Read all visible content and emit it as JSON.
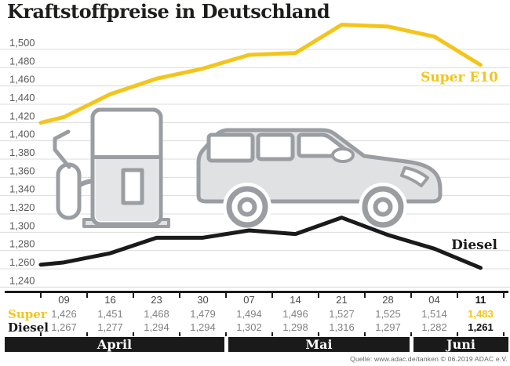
{
  "title": "Kraftstoffpreise in Deutschland",
  "source": "Quelle: www.adac.de/tanken   © 06.2019   ADAC e.V.",
  "colors": {
    "super_yellow": "#F3C51C",
    "diesel_black": "#1A1A1A",
    "grid_gray": "#DCDCDC",
    "icon_stroke": "#9A9EA2",
    "icon_fill": "#DFE1E3"
  },
  "icons": [
    "fuel-pump-icon",
    "car-icon"
  ],
  "chart_data": {
    "type": "line",
    "title": "Kraftstoffpreise in Deutschland",
    "categories": [
      "09",
      "16",
      "23",
      "30",
      "07",
      "14",
      "21",
      "28",
      "04",
      "11"
    ],
    "months": [
      {
        "label": "April",
        "columns": 4
      },
      {
        "label": "Mai",
        "columns": 4
      },
      {
        "label": "Juni",
        "columns": 2
      }
    ],
    "series": [
      {
        "name": "Super",
        "label_chart": "Super E10",
        "color": "#F3C51C",
        "values": [
          1.426,
          1.451,
          1.468,
          1.479,
          1.494,
          1.496,
          1.527,
          1.525,
          1.514,
          1.483
        ]
      },
      {
        "name": "Diesel",
        "label_chart": "Diesel",
        "color": "#1A1A1A",
        "values": [
          1.267,
          1.277,
          1.294,
          1.294,
          1.302,
          1.298,
          1.316,
          1.297,
          1.282,
          1.261
        ]
      }
    ],
    "ylim": [
      1.24,
      1.5
    ],
    "ytick_step": 0.02,
    "grid": true,
    "legend_position": "inline-right",
    "highlight_last_column": true
  }
}
